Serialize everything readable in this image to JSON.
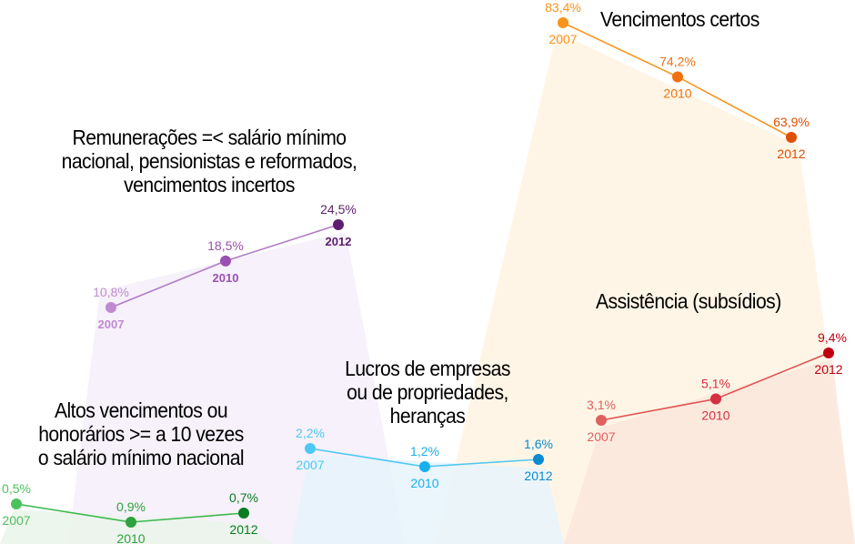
{
  "chart_data": [
    {
      "type": "line",
      "title": "Remunerações =< salário mínimo nacional, pensionistas e reformados, vencimentos incertos",
      "title_lines": [
        "Remunerações =< salário mínimo",
        "nacional, pensionistas e reformados,",
        "vencimentos incertos"
      ],
      "title_color": "#5b2a86",
      "line_color": "#b07cc8",
      "fill_color": "#f5eef9",
      "x": [
        "2007",
        "2010",
        "2012"
      ],
      "values": [
        10.8,
        18.5,
        24.5
      ],
      "value_labels": [
        "10,8%",
        "18,5%",
        "24,5%"
      ],
      "point_colors": [
        "#c08ad0",
        "#9b4fb5",
        "#5c1e6e"
      ]
    },
    {
      "type": "line",
      "title": "Vencimentos certos",
      "title_lines": [
        "Vencimentos certos"
      ],
      "title_color": "#e2520a",
      "line_color": "#f7941d",
      "fill_color": "#fef3e2",
      "x": [
        "2007",
        "2010",
        "2012"
      ],
      "values": [
        83.4,
        74.2,
        63.9
      ],
      "value_labels": [
        "83,4%",
        "74,2%",
        "63,9%"
      ],
      "point_colors": [
        "#f7941d",
        "#f07010",
        "#e04e00"
      ]
    },
    {
      "type": "line",
      "title": "Assistência (subsídios)",
      "title_lines": [
        "Assistência (subsídios)"
      ],
      "title_color": "#c8102e",
      "line_color": "#e05050",
      "fill_color": "#fbe6dc",
      "x": [
        "2007",
        "2010",
        "2012"
      ],
      "values": [
        3.1,
        5.1,
        9.4
      ],
      "value_labels": [
        "3,1%",
        "5,1%",
        "9,4%"
      ],
      "point_colors": [
        "#e06060",
        "#d53040",
        "#c00010"
      ]
    },
    {
      "type": "line",
      "title": "Lucros de empresas ou de propriedades, heranças",
      "title_lines": [
        "Lucros de empresas",
        "ou de propriedades,",
        "heranças"
      ],
      "title_color": "#0898d8",
      "line_color": "#4dc8f5",
      "fill_color": "#e6f3fb",
      "x": [
        "2007",
        "2010",
        "2012"
      ],
      "values": [
        2.2,
        1.2,
        1.6
      ],
      "value_labels": [
        "2,2%",
        "1,2%",
        "1,6%"
      ],
      "point_colors": [
        "#4dc8f5",
        "#18b0ee",
        "#0a8ad0"
      ]
    },
    {
      "type": "line",
      "title": "Altos vencimentos ou honorários >= a 10 vezes o salário mínimo nacional",
      "title_lines": [
        "Altos vencimentos ou",
        "honorários >= a 10 vezes",
        "o salário mínimo nacional"
      ],
      "title_color": "#148a2a",
      "line_color": "#3cb84c",
      "fill_color": "#eaf4ea",
      "x": [
        "2007",
        "2010",
        "2012"
      ],
      "values": [
        0.5,
        0.9,
        0.7
      ],
      "value_labels": [
        "0,5%",
        "0,9%",
        "0,7%"
      ],
      "point_colors": [
        "#4cc25a",
        "#2ea23e",
        "#0a7c22"
      ]
    }
  ]
}
